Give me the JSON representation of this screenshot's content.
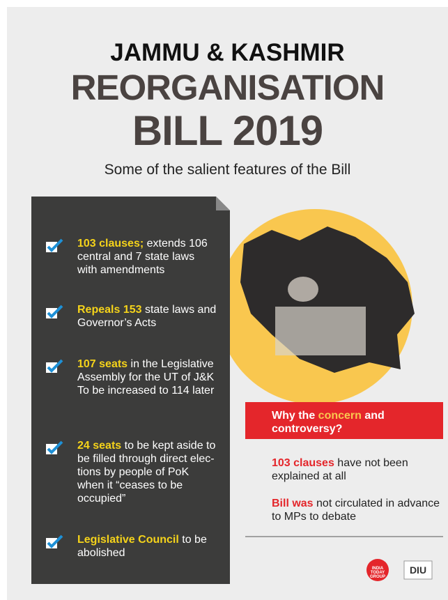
{
  "header": {
    "line1": "JAMMU & KASHMIR",
    "line2": "REORGANISATION",
    "line3": "BILL 2019",
    "subtitle": "Some of the salient features of the Bill"
  },
  "features": [
    {
      "highlight": "103 clauses;",
      "text": " extends 106 central and 7 state laws with amendments"
    },
    {
      "highlight": "Repeals 153",
      "text": " state laws and Governor’s Acts"
    },
    {
      "highlight": "107 seats",
      "text": " in the Legislative Assembly for the UT of J&K To be increased to 114 later"
    },
    {
      "highlight": "24 seats",
      "text": " to be kept aside to be filled through direct elec-tions by people of PoK when it “ceases to be occupied”"
    },
    {
      "highlight": "Legislative Council",
      "text": " to be abolished"
    }
  ],
  "concern": {
    "heading": {
      "before": "Why the ",
      "highlight": "concern",
      "after": " and controversy?"
    },
    "points": [
      {
        "highlight": "103 clauses",
        "text": " have not been explained at all"
      },
      {
        "highlight": "Bill was",
        "text": " not circulated in advance to MPs to debate"
      }
    ]
  },
  "logos": {
    "group": "INDIA TODAY GROUP",
    "diu": "DIU"
  }
}
